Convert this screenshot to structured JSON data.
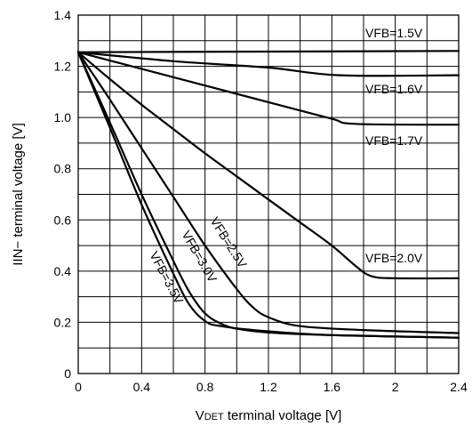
{
  "chart_data": {
    "type": "line",
    "xlabel_main": "V",
    "xlabel_sub": "DET",
    "xlabel_rest": " terminal voltage [V]",
    "ylabel": "IIN− terminal voltage [V]",
    "xlim": [
      0,
      2.4
    ],
    "ylim": [
      0,
      1.4
    ],
    "x_ticks": [
      "0",
      "0.4",
      "0.8",
      "1.2",
      "1.6",
      "2",
      "2.4"
    ],
    "y_ticks": [
      "0",
      "0.2",
      "0.4",
      "0.6",
      "0.8",
      "1.0",
      "1.2",
      "1.4"
    ],
    "x_grid_step": 0.2,
    "y_grid_step": 0.1,
    "grid": true,
    "series": [
      {
        "name": "VFB=1.5V",
        "points": [
          [
            0,
            1.255
          ],
          [
            2.4,
            1.26
          ]
        ]
      },
      {
        "name": "VFB=1.6V",
        "points": [
          [
            0,
            1.255
          ],
          [
            0.6,
            1.22
          ],
          [
            1.2,
            1.195
          ],
          [
            1.65,
            1.165
          ],
          [
            2.4,
            1.165
          ]
        ]
      },
      {
        "name": "VFB=1.7V",
        "points": [
          [
            0,
            1.255
          ],
          [
            0.4,
            1.19
          ],
          [
            0.8,
            1.125
          ],
          [
            1.2,
            1.06
          ],
          [
            1.6,
            0.995
          ],
          [
            1.75,
            0.975
          ],
          [
            2.4,
            0.972
          ]
        ]
      },
      {
        "name": "VFB=2.0V",
        "points": [
          [
            0,
            1.255
          ],
          [
            0.2,
            1.15
          ],
          [
            0.4,
            1.05
          ],
          [
            0.6,
            0.955
          ],
          [
            0.8,
            0.86
          ],
          [
            1.0,
            0.77
          ],
          [
            1.2,
            0.68
          ],
          [
            1.4,
            0.59
          ],
          [
            1.6,
            0.5
          ],
          [
            1.75,
            0.42
          ],
          [
            1.85,
            0.38
          ],
          [
            2.0,
            0.372
          ],
          [
            2.4,
            0.372
          ]
        ]
      },
      {
        "name": "VFB=2.5V",
        "points": [
          [
            0,
            1.255
          ],
          [
            0.2,
            1.07
          ],
          [
            0.4,
            0.88
          ],
          [
            0.6,
            0.69
          ],
          [
            0.8,
            0.5
          ],
          [
            1.0,
            0.33
          ],
          [
            1.1,
            0.26
          ],
          [
            1.2,
            0.22
          ],
          [
            1.4,
            0.185
          ],
          [
            1.8,
            0.17
          ],
          [
            2.4,
            0.158
          ]
        ]
      },
      {
        "name": "VFB=3.0V",
        "points": [
          [
            0,
            1.255
          ],
          [
            0.2,
            0.98
          ],
          [
            0.4,
            0.7
          ],
          [
            0.6,
            0.44
          ],
          [
            0.7,
            0.32
          ],
          [
            0.8,
            0.235
          ],
          [
            0.9,
            0.195
          ],
          [
            1.0,
            0.175
          ],
          [
            1.2,
            0.16
          ],
          [
            1.6,
            0.15
          ],
          [
            2.4,
            0.14
          ]
        ]
      },
      {
        "name": "VFB=3.5V",
        "points": [
          [
            0,
            1.255
          ],
          [
            0.2,
            0.96
          ],
          [
            0.4,
            0.66
          ],
          [
            0.6,
            0.39
          ],
          [
            0.7,
            0.27
          ],
          [
            0.8,
            0.205
          ],
          [
            0.9,
            0.185
          ],
          [
            1.2,
            0.165
          ],
          [
            1.6,
            0.15
          ],
          [
            2.4,
            0.14
          ]
        ]
      }
    ]
  }
}
